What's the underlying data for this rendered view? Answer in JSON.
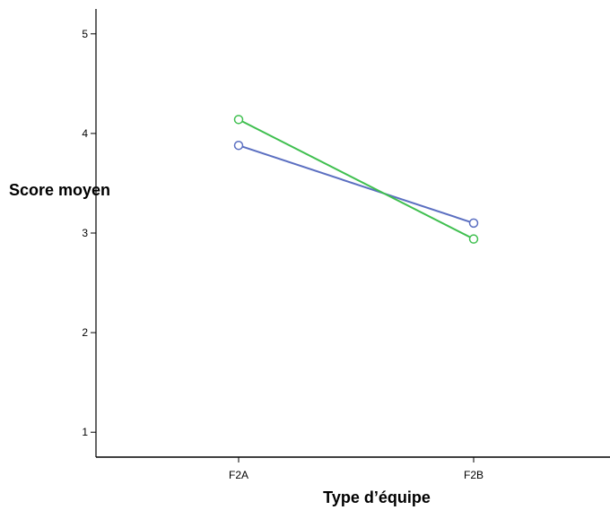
{
  "chart_data": {
    "type": "line",
    "title": "",
    "xlabel": "Type d’équipe",
    "ylabel": "Score moyen",
    "categories": [
      "F2A",
      "F2B"
    ],
    "yticks": [
      "1",
      "2",
      "3",
      "4",
      "5"
    ],
    "ylim": [
      0.75,
      5.25
    ],
    "grid": false,
    "legend": "none",
    "series": [
      {
        "color": "#5b6fc1",
        "marker": "circle",
        "values": [
          3.88,
          3.1
        ]
      },
      {
        "color": "#3fbf4f",
        "marker": "circle",
        "values": [
          4.14,
          2.94
        ]
      }
    ]
  }
}
